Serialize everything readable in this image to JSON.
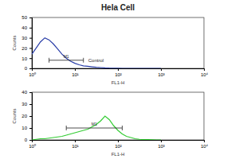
{
  "chart_data": [
    {
      "type": "line",
      "title": "Hela Cell",
      "log": "x",
      "x": [
        1,
        1.26,
        1.58,
        2,
        2.51,
        3.16,
        3.98,
        5.01,
        6.31,
        7.94,
        10,
        12.6,
        15.8,
        20,
        25.1,
        31.6,
        39.8,
        50.1,
        63.1,
        79.4,
        100,
        126,
        158,
        200,
        251,
        316,
        398,
        501,
        631,
        794,
        1000
      ],
      "series": [
        {
          "color": "#2a3ea8",
          "values": [
            14,
            20,
            26,
            30,
            28,
            24,
            19,
            14,
            10,
            7,
            5,
            3.5,
            2.5,
            2,
            1.5,
            1,
            0.8,
            0.5,
            0.3,
            0.2,
            0.1,
            0,
            0,
            0,
            0,
            0,
            0,
            0,
            0,
            0,
            0
          ]
        }
      ],
      "xlim": [
        1,
        10000
      ],
      "xticks": [
        {
          "value": 1,
          "label": "10⁰"
        },
        {
          "value": 10,
          "label": "10¹"
        },
        {
          "value": 100,
          "label": "10²"
        },
        {
          "value": 1000,
          "label": "10³"
        },
        {
          "value": 10000,
          "label": "10⁴"
        }
      ],
      "ylim": [
        0,
        50
      ],
      "yticks": [
        0,
        10,
        20,
        30,
        40,
        50
      ],
      "x_label": "FL1-H",
      "y_label": "Counts",
      "gates": [
        {
          "label": "M1",
          "x": [
            2.51,
            15.8
          ],
          "y": 8
        }
      ],
      "annotations": [
        {
          "text": "Control",
          "x": 18,
          "y": 8
        }
      ]
    },
    {
      "type": "line",
      "log": "x",
      "x": [
        1,
        1.26,
        1.58,
        2,
        2.51,
        3.16,
        3.98,
        5.01,
        6.31,
        7.94,
        10,
        12.6,
        15.8,
        20,
        25.1,
        31.6,
        39.8,
        50.1,
        63.1,
        79.4,
        100,
        126,
        158,
        200,
        251,
        316,
        398,
        501,
        631,
        794,
        1000
      ],
      "series": [
        {
          "color": "#33cc33",
          "values": [
            0,
            0.5,
            1,
            1,
            1.5,
            2,
            2.5,
            3,
            4,
            5,
            6,
            7,
            8,
            9,
            11,
            13,
            16,
            20,
            17,
            12,
            8,
            5,
            3,
            2,
            1,
            0.5,
            0.3,
            0.2,
            0.1,
            0,
            0
          ]
        }
      ],
      "xlim": [
        1,
        10000
      ],
      "xticks": [
        {
          "value": 1,
          "label": "10⁰"
        },
        {
          "value": 10,
          "label": "10¹"
        },
        {
          "value": 100,
          "label": "10²"
        },
        {
          "value": 1000,
          "label": "10³"
        },
        {
          "value": 10000,
          "label": "10⁴"
        }
      ],
      "ylim": [
        0,
        40
      ],
      "yticks": [
        0,
        10,
        20,
        30,
        40
      ],
      "x_label": "FL1-H",
      "y_label": "Counts",
      "gates": [
        {
          "label": "M1",
          "x": [
            6.31,
            126
          ],
          "y": 10
        }
      ]
    }
  ]
}
